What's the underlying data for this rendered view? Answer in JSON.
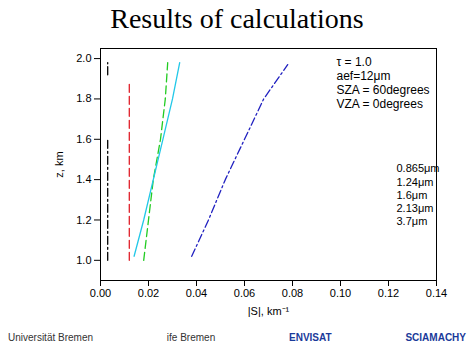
{
  "chart_data": {
    "type": "line",
    "title": "Results of calculations",
    "xlabel": "|S|, km⁻¹",
    "ylabel": "z, km",
    "xlim": [
      0.0,
      0.14
    ],
    "xticks": [
      {
        "value": 0.0,
        "label": "0.00"
      },
      {
        "value": 0.02,
        "label": "0.02"
      },
      {
        "value": 0.04,
        "label": "0.04"
      },
      {
        "value": 0.06,
        "label": "0.06"
      },
      {
        "value": 0.08,
        "label": "0.08"
      },
      {
        "value": 0.1,
        "label": "0.10"
      },
      {
        "value": 0.12,
        "label": "0.12"
      },
      {
        "value": 0.14,
        "label": "0.14"
      }
    ],
    "ylim": [
      0.9,
      2.05
    ],
    "yticks": [
      {
        "value": 1.0,
        "label": "1.0"
      },
      {
        "value": 1.2,
        "label": "1.2"
      },
      {
        "value": 1.4,
        "label": "1.4"
      },
      {
        "value": 1.6,
        "label": "1.6"
      },
      {
        "value": 1.8,
        "label": "1.8"
      },
      {
        "value": 2.0,
        "label": "2.0"
      }
    ],
    "annotations": [
      "τ = 1.0",
      "aef=12μm",
      "SZA = 60degrees",
      "VZA = 0degrees"
    ],
    "legend": "right",
    "series": [
      {
        "name": "0.865μm",
        "color": "#000000",
        "line_style": "dashdot",
        "x": [
          0.003,
          0.003,
          0.003,
          0.003,
          0.003
        ],
        "values": [
          1.0,
          1.6,
          null,
          1.92,
          1.98
        ]
      },
      {
        "name": "1.24μm",
        "color": "#e0202a",
        "line_style": "dashed",
        "x": [
          0.012,
          0.012
        ],
        "values": [
          1.0,
          1.88
        ]
      },
      {
        "name": "1.6μm",
        "color": "#22cc22",
        "line_style": "dashed",
        "x": [
          0.018,
          0.02,
          0.022,
          0.025,
          0.027,
          0.028
        ],
        "values": [
          1.0,
          1.2,
          1.4,
          1.6,
          1.8,
          1.98
        ]
      },
      {
        "name": "2.13μm",
        "color": "#22c8e8",
        "line_style": "solid",
        "x": [
          0.014,
          0.018,
          0.022,
          0.026,
          0.03,
          0.033
        ],
        "values": [
          1.02,
          1.2,
          1.4,
          1.6,
          1.8,
          1.98
        ]
      },
      {
        "name": "3.7μm",
        "color": "#2020c0",
        "line_style": "dashdot",
        "x": [
          0.038,
          0.045,
          0.052,
          0.06,
          0.068,
          0.078
        ],
        "values": [
          1.02,
          1.2,
          1.4,
          1.6,
          1.8,
          1.97
        ]
      }
    ],
    "grid": false
  },
  "logos": [
    "Universität Bremen",
    "ife Bremen",
    "ENVISAT",
    "SCIAMACHY"
  ]
}
